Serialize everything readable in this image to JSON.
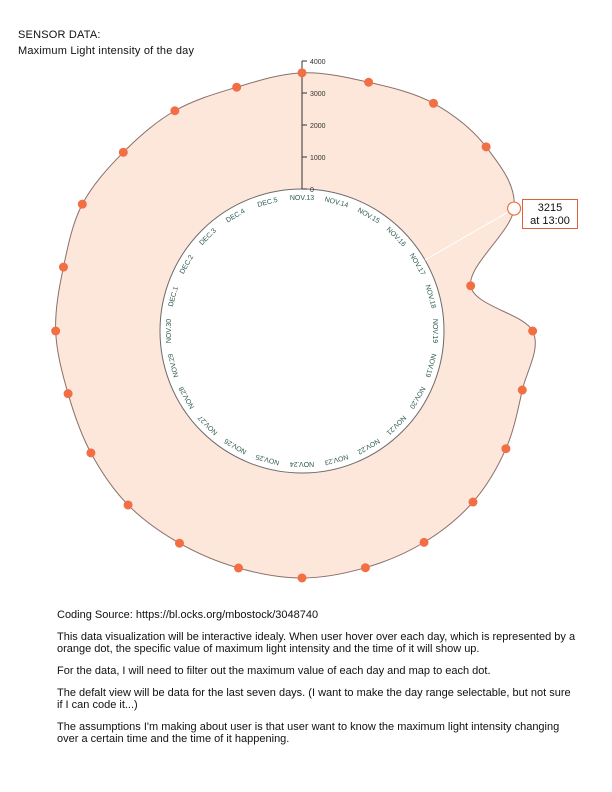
{
  "header": {
    "section_label": "SENSOR DATA:",
    "chart_title": "Maximum Light intensity of the day"
  },
  "tooltip": {
    "value": "3215",
    "time": "at 13:00"
  },
  "notes": {
    "source": "Coding Source: https://bl.ocks.org/mbostock/3048740",
    "p1": "This data visualization will be interactive idealy. When user hover over each day, which is represented by a orange dot, the specific value of maximum light intensity and the time of it will show up.",
    "p2": "For the data, I will need to filter out the maximum value of each day and map to each dot.",
    "p3": "The defalt view will be data for the last seven days. (I want to make the day range selectable, but not sure if I can code it...)",
    "p4": "The assumptions I'm making about user is that user want to know the maximum light intensity changing over a certain time and the time of it happening."
  },
  "colors": {
    "area_fill": "#fde6da",
    "area_stroke": "#8a6f6a",
    "dot": "#f26f45",
    "axis": "#333333",
    "label": "#2f5a50",
    "tooltip_border": "#e0603a"
  },
  "chart_data": {
    "type": "radial-area",
    "title": "Maximum Light intensity of the day",
    "radial_axis": {
      "min": 0,
      "max": 4000,
      "ticks": [
        0,
        1000,
        2000,
        3000,
        4000
      ]
    },
    "categories": [
      "NOV.13",
      "NOV.14",
      "NOV.15",
      "NOV.16",
      "NOV.17",
      "NOV.18",
      "NOV.19",
      "NOV.19",
      "NOV.20",
      "NOV.21",
      "NOV.22",
      "NOV.23",
      "NOV.24",
      "NOV.25",
      "NOV.26",
      "NOV.27",
      "NOV.28",
      "NOV.29",
      "NOV.30",
      "DEC.1",
      "DEC.2",
      "DEC.3",
      "DEC.4",
      "DEC.5"
    ],
    "values": [
      3630,
      3610,
      3780,
      3700,
      3215,
      1020,
      2770,
      2690,
      2920,
      3120,
      3190,
      3220,
      3280,
      3230,
      3220,
      3250,
      3180,
      3130,
      3260,
      3280,
      3490,
      3460,
      3510,
      3450
    ],
    "highlight_index": 4,
    "highlight": {
      "value": 3215,
      "time": "13:00"
    }
  }
}
